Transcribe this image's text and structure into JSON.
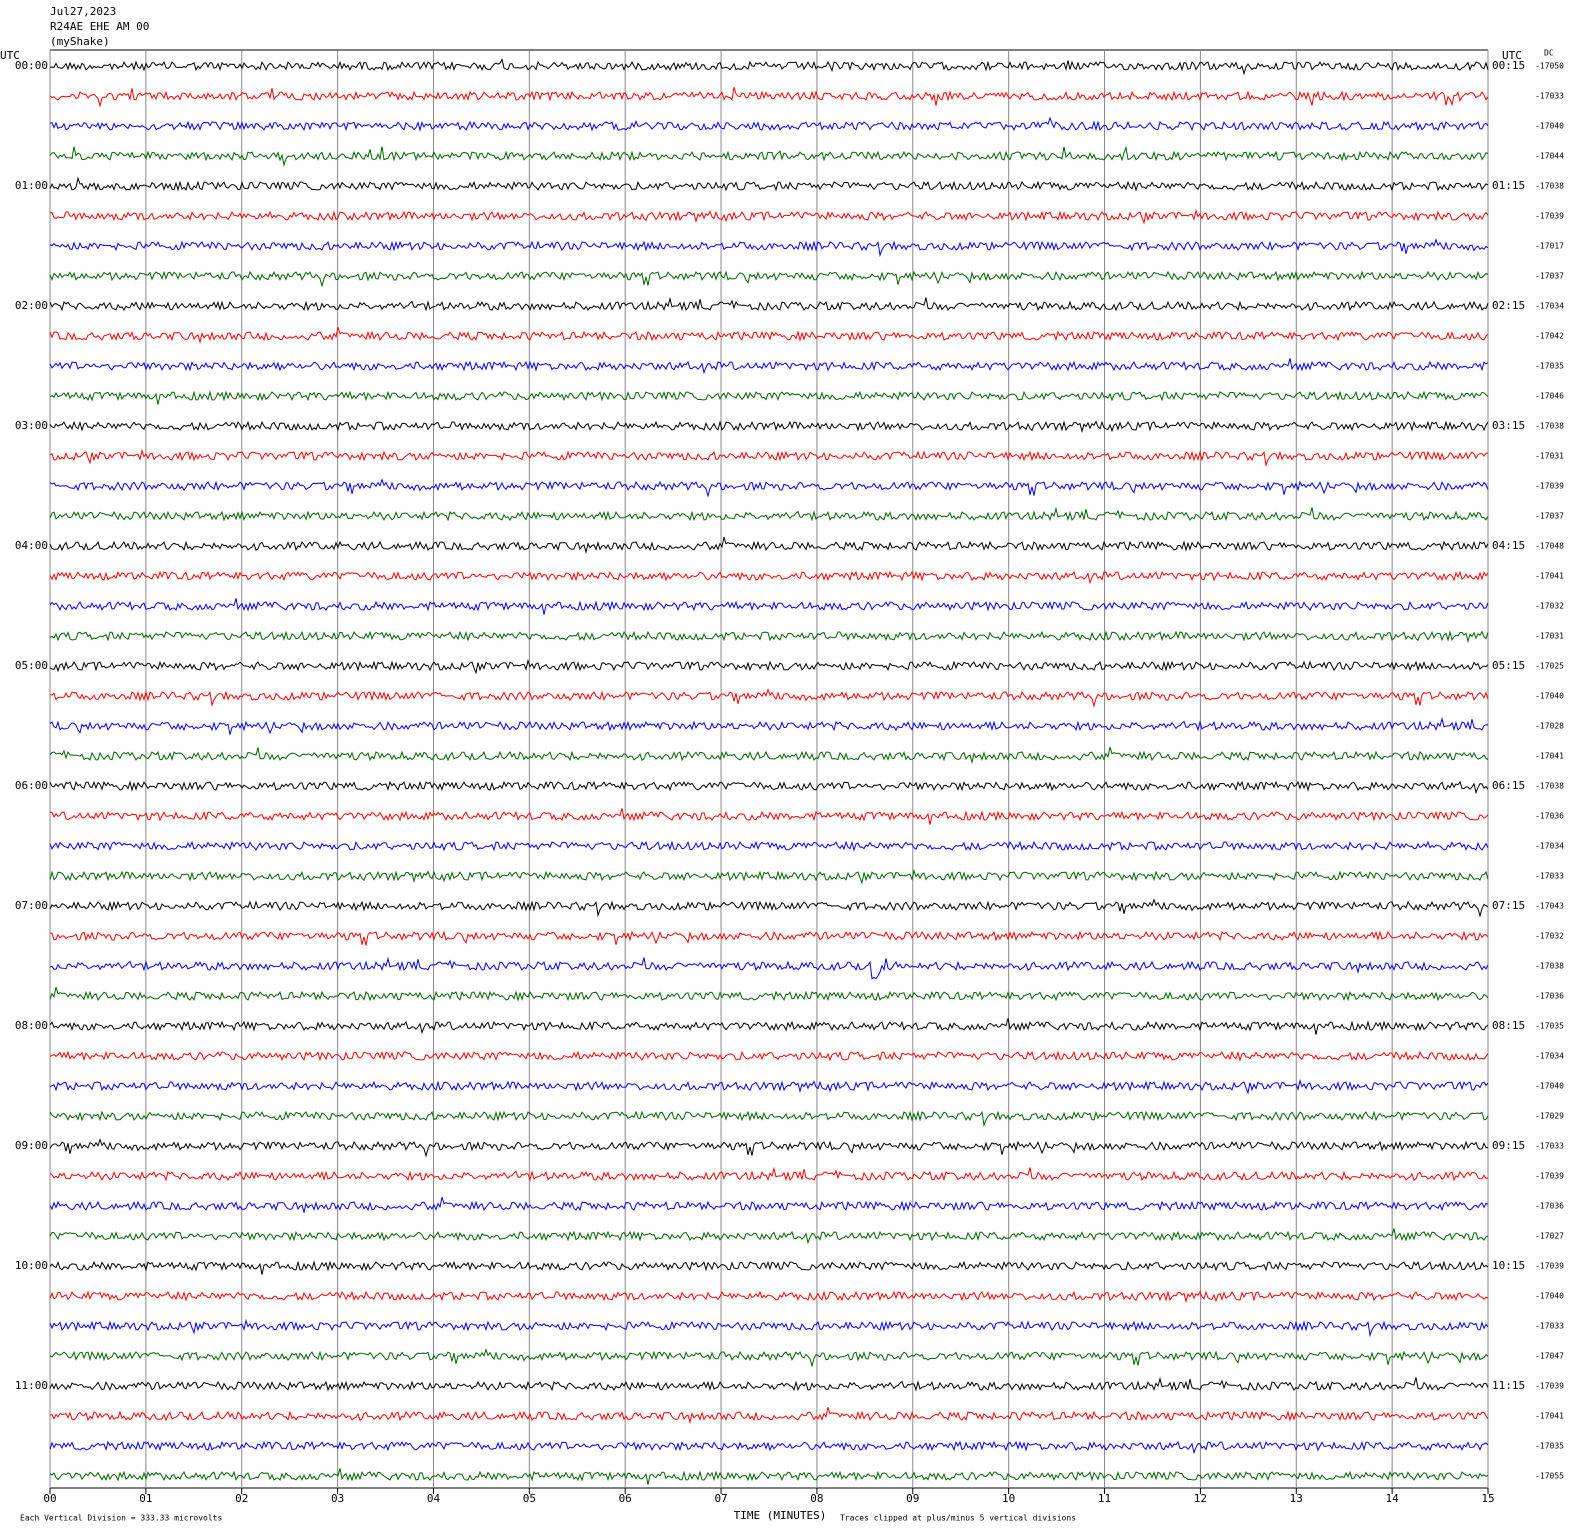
{
  "header": {
    "date": "Jul27,2023",
    "station": "R24AE EHE AM 00",
    "network": "(myShake)"
  },
  "chart_data": {
    "type": "helicorder",
    "left_axis_label": "UTC",
    "right_axis_label": "UTC",
    "dc_label": "DC",
    "xlabel": "TIME (MINUTES)",
    "xlim": [
      0,
      15
    ],
    "xticks": [
      {
        "value": 0,
        "label": "00"
      },
      {
        "value": 1,
        "label": "01"
      },
      {
        "value": 2,
        "label": "02"
      },
      {
        "value": 3,
        "label": "03"
      },
      {
        "value": 4,
        "label": "04"
      },
      {
        "value": 5,
        "label": "05"
      },
      {
        "value": 6,
        "label": "06"
      },
      {
        "value": 7,
        "label": "07"
      },
      {
        "value": 8,
        "label": "08"
      },
      {
        "value": 9,
        "label": "09"
      },
      {
        "value": 10,
        "label": "10"
      },
      {
        "value": 11,
        "label": "11"
      },
      {
        "value": 12,
        "label": "12"
      },
      {
        "value": 13,
        "label": "13"
      },
      {
        "value": 14,
        "label": "14"
      },
      {
        "value": 15,
        "label": "15"
      }
    ],
    "hour_labels_left": [
      "00:00",
      "01:00",
      "02:00",
      "03:00",
      "04:00",
      "05:00",
      "06:00",
      "07:00",
      "08:00",
      "09:00",
      "10:00",
      "11:00"
    ],
    "hour_labels_right": [
      "00:15",
      "01:15",
      "02:15",
      "03:15",
      "04:15",
      "05:15",
      "06:15",
      "07:15",
      "08:15",
      "09:15",
      "10:15",
      "11:15"
    ],
    "trace_colors": [
      "#000000",
      "#ff0000",
      "#0000ff",
      "#006400"
    ],
    "dc_offsets": [
      -17050,
      -17033,
      -17040,
      -17044,
      -17038,
      -17039,
      -17017,
      -17037,
      -17034,
      -17042,
      -17035,
      -17046,
      -17038,
      -17031,
      -17039,
      -17037,
      -17048,
      -17041,
      -17032,
      -17031,
      -17025,
      -17040,
      -17028,
      -17041,
      -17038,
      -17036,
      -17034,
      -17033,
      -17043,
      -17032,
      -17038,
      -17036,
      -17035,
      -17034,
      -17040,
      -17029,
      -17033,
      -17039,
      -17036,
      -17027,
      -17039,
      -17040,
      -17033,
      -17047,
      -17039,
      -17041,
      -17035,
      -17055
    ],
    "footer": {
      "scale": "Each Vertical Division =  333.33 microvolts",
      "clip": "Traces clipped at plus/minus 5 vertical divisions"
    }
  }
}
